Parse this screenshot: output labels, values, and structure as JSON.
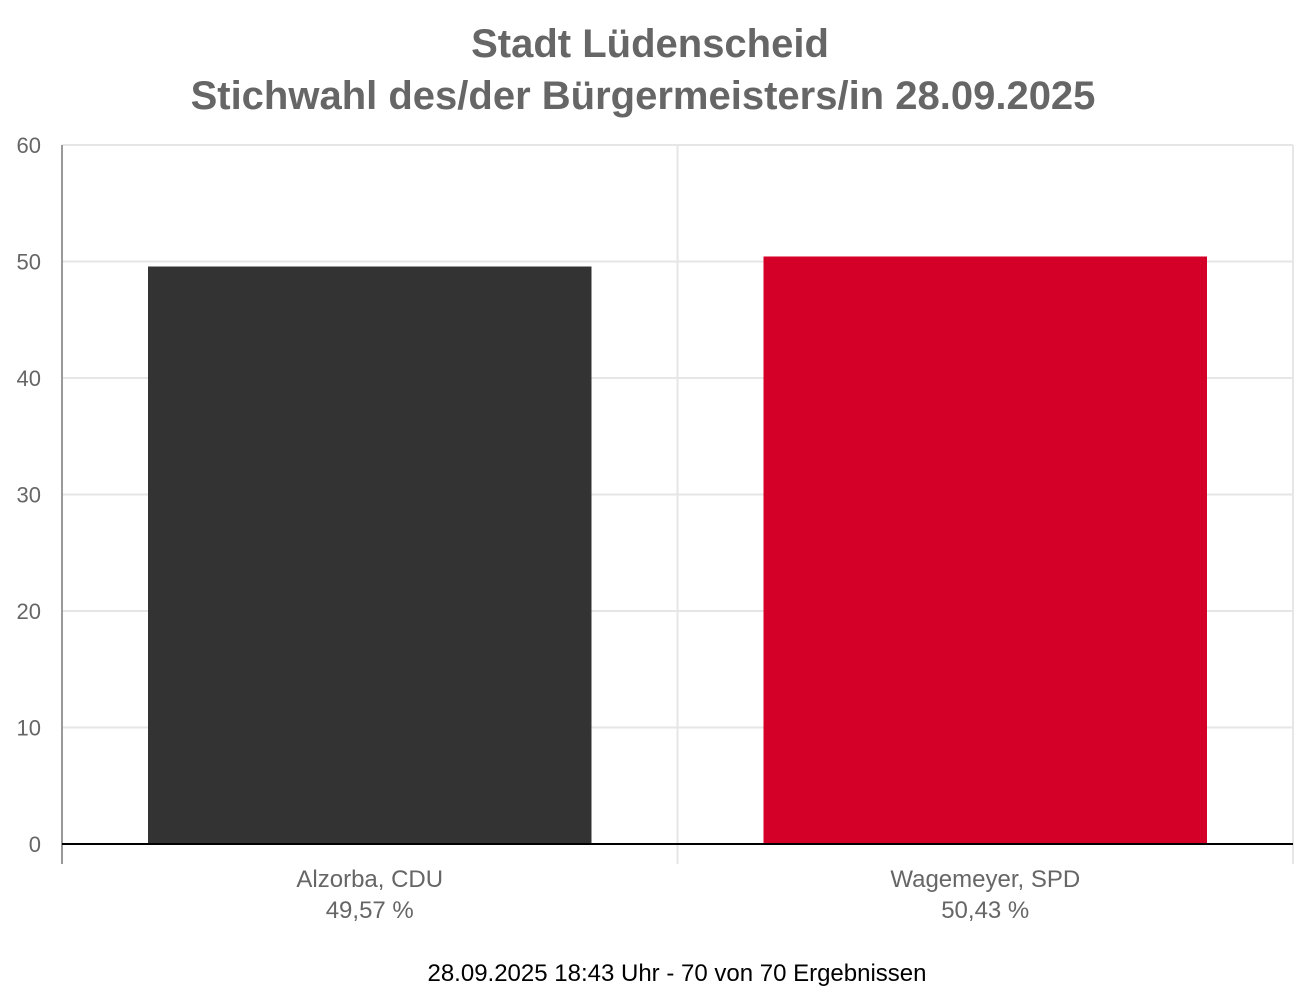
{
  "chart_data": {
    "type": "bar",
    "title": [
      "Stadt Lüdenscheid",
      "Stichwahl des/der Bürgermeisters/in 28.09.2025"
    ],
    "categories": [
      "Alzorba, CDU",
      "Wagemeyer, SPD"
    ],
    "value_labels": [
      "49,57 %",
      "50,43 %"
    ],
    "values": [
      49.57,
      50.43
    ],
    "colors": [
      "#333333",
      "#d50027"
    ],
    "ylim": [
      0,
      60
    ],
    "yticks": [
      0,
      10,
      20,
      30,
      40,
      50,
      60
    ],
    "xlabel": "",
    "ylabel": "",
    "grid": true,
    "legend": "none"
  },
  "footer": "28.09.2025 18:43 Uhr - 70 von 70 Ergebnissen"
}
